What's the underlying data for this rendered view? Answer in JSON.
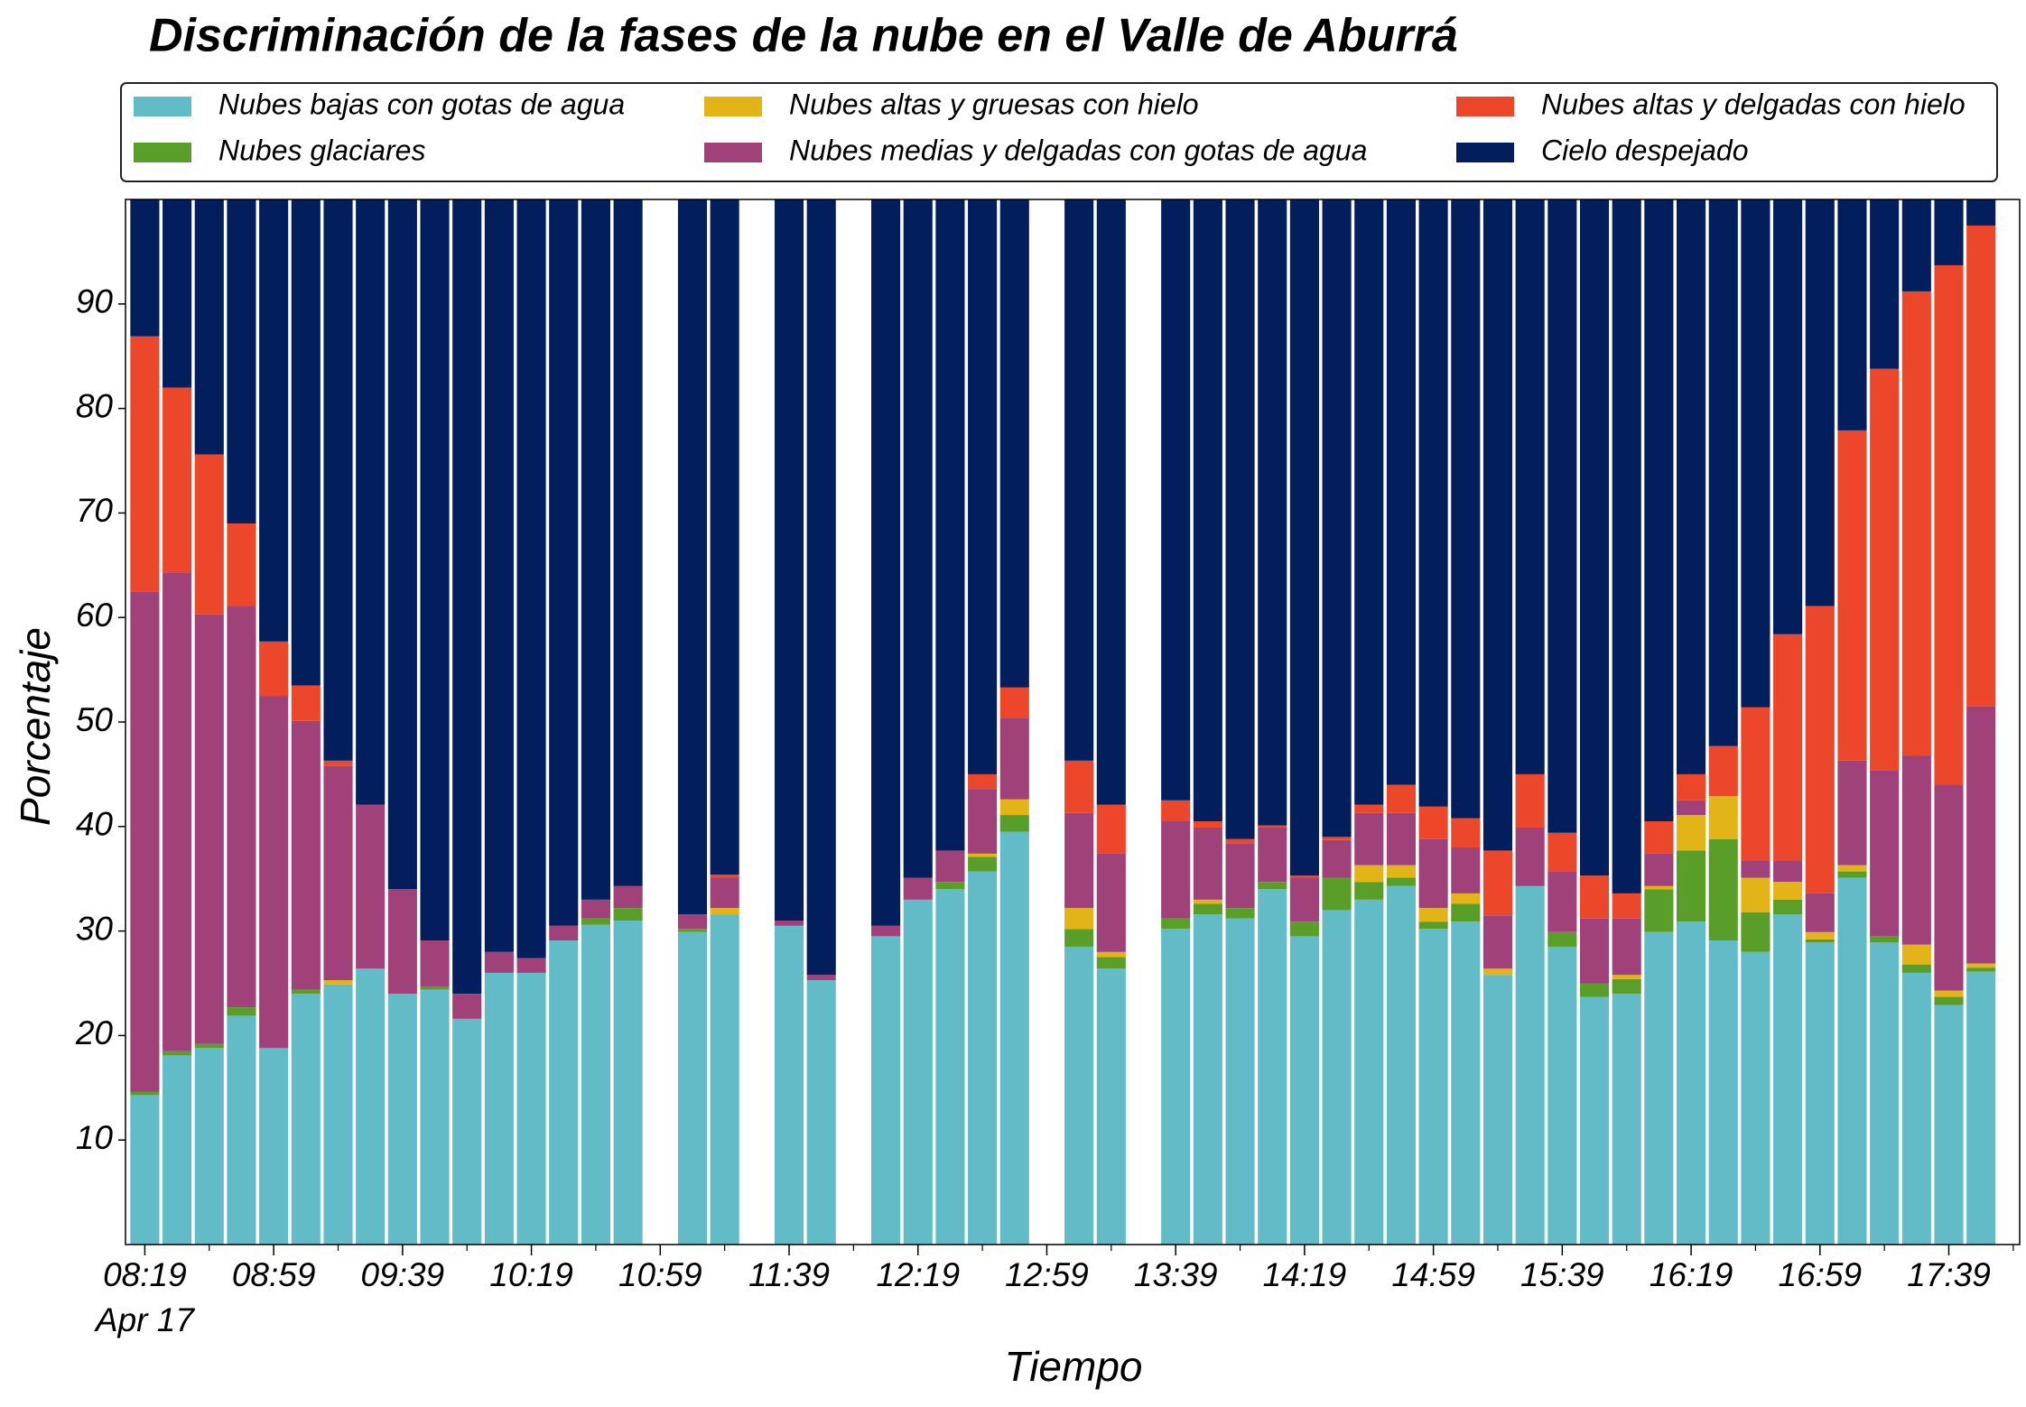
{
  "chart_data": {
    "type": "stacked_bar",
    "title": "Discriminación de la fases de la nube en el Valle de Aburrá",
    "xlabel": "Tiempo",
    "ylabel": "Porcentaje",
    "x": [
      "08:19",
      "08:29",
      "08:39",
      "08:49",
      "08:59",
      "09:09",
      "09:19",
      "09:29",
      "09:39",
      "09:49",
      "09:59",
      "10:09",
      "10:19",
      "10:29",
      "10:39",
      "10:49",
      "10:59",
      "11:09",
      "11:19",
      "11:29",
      "11:39",
      "11:49",
      "11:59",
      "12:09",
      "12:19",
      "12:29",
      "12:39",
      "12:49",
      "12:59",
      "13:09",
      "13:19",
      "13:29",
      "13:39",
      "13:49",
      "13:59",
      "14:09",
      "14:19",
      "14:29",
      "14:39",
      "14:49",
      "14:59",
      "15:09",
      "15:19",
      "15:29",
      "15:39",
      "15:49",
      "15:59",
      "16:09",
      "16:19",
      "16:29",
      "16:39",
      "16:49",
      "16:59",
      "17:09",
      "17:19",
      "17:29",
      "17:39",
      "17:49"
    ],
    "xticks": [
      "08:19",
      "08:59",
      "09:39",
      "10:19",
      "10:59",
      "11:39",
      "12:19",
      "12:59",
      "13:39",
      "14:19",
      "14:59",
      "15:39",
      "16:19",
      "16:59",
      "17:39"
    ],
    "xtick_date": "Apr 17",
    "ylim": [
      0,
      100
    ],
    "yticks": [
      10,
      20,
      30,
      40,
      50,
      60,
      70,
      80,
      90
    ],
    "series": [
      {
        "name": "Nubes bajas con gotas de agua",
        "color": "#62bcc8",
        "values": [
          14.3,
          18.1,
          18.8,
          21.9,
          18.8,
          24.0,
          24.9,
          26.4,
          24,
          24.4,
          21.6,
          26,
          26,
          29.1,
          30.6,
          31,
          null,
          29.9,
          31.6,
          null,
          30.5,
          25.3,
          null,
          29.5,
          33,
          34,
          35.7,
          39.5,
          null,
          28.5,
          26.4,
          null,
          30.2,
          31.6,
          31.2,
          34,
          29.5,
          32,
          33,
          34.3,
          30.2,
          30.9,
          25.8,
          34.3,
          28.5,
          23.7,
          24,
          29.9,
          30.9,
          29.1,
          28,
          31.6,
          28.9,
          35.1,
          28.9,
          26,
          22.9,
          26.1
        ]
      },
      {
        "name": "Nubes glaciares",
        "color": "#5a9e2a",
        "values": [
          0.3,
          0.4,
          0.4,
          0.8,
          0,
          0.4,
          0,
          0,
          0,
          0.3,
          0,
          0,
          0,
          0,
          0.6,
          1.2,
          null,
          0.3,
          0,
          null,
          0,
          0,
          null,
          0,
          0,
          0.7,
          1.4,
          1.6,
          null,
          1.7,
          1.1,
          null,
          1.0,
          1.0,
          1.0,
          0.7,
          1.4,
          3.1,
          1.7,
          0.8,
          0.7,
          1.7,
          0,
          0,
          1.4,
          1.3,
          1.4,
          4.1,
          6.8,
          9.7,
          3.8,
          1.4,
          0.3,
          0.6,
          0.6,
          0.8,
          0.8,
          0.4
        ]
      },
      {
        "name": "Nubes altas y gruesas con hielo",
        "color": "#e2b418",
        "values": [
          0,
          0,
          0,
          0,
          0,
          0,
          0.4,
          0,
          0,
          0,
          0,
          0,
          0,
          0,
          0,
          0,
          null,
          0,
          0.6,
          null,
          0,
          0,
          null,
          0,
          0,
          0,
          0.3,
          1.5,
          null,
          2.0,
          0.5,
          null,
          0,
          0.4,
          0,
          0,
          0,
          0,
          1.6,
          1.2,
          1.3,
          1.0,
          0.6,
          0,
          0,
          0,
          0.4,
          0.3,
          3.4,
          4.1,
          3.3,
          1.7,
          0.7,
          0.6,
          0,
          1.9,
          0.6,
          0.4
        ]
      },
      {
        "name": "Nubes medias y delgadas con gotas de agua",
        "color": "#a0417a",
        "values": [
          47.9,
          45.8,
          41.1,
          38.4,
          33.7,
          25.7,
          20.5,
          15.7,
          10,
          4.4,
          2.4,
          2,
          1.4,
          1.4,
          1.8,
          2.1,
          null,
          1.4,
          2.9,
          null,
          0.5,
          0.5,
          null,
          1,
          2.1,
          3,
          6.2,
          7.8,
          null,
          9.1,
          9.4,
          null,
          9.3,
          6.9,
          6.2,
          5.2,
          4.2,
          3.6,
          5,
          5,
          6.6,
          4.4,
          5.1,
          5.6,
          5.8,
          6.2,
          5.4,
          3.1,
          1.4,
          0,
          1.6,
          2,
          3.7,
          10,
          15.9,
          18.1,
          19.7,
          24.6
        ]
      },
      {
        "name": "Nubes altas y delgadas con hielo",
        "color": "#ec472b",
        "values": [
          24.4,
          17.7,
          15.3,
          7.9,
          5.2,
          3.4,
          0.5,
          0,
          0,
          0,
          0,
          0,
          0,
          0,
          0,
          0,
          null,
          0,
          0.3,
          null,
          0,
          0,
          null,
          0,
          0,
          0,
          1.4,
          2.9,
          null,
          5.0,
          4.7,
          null,
          2.0,
          0.6,
          0.4,
          0.2,
          0.2,
          0.3,
          0.8,
          2.7,
          3.1,
          2.8,
          6.2,
          5.1,
          3.7,
          4.1,
          2.4,
          3.1,
          2.5,
          4.8,
          14.7,
          21.7,
          27.5,
          31.6,
          38.4,
          44.4,
          49.7,
          46
        ]
      },
      {
        "name": "Cielo despejado",
        "color": "#031e5c",
        "values": [
          13.1,
          18.0,
          24.4,
          31.0,
          42.3,
          46.5,
          53.7,
          57.9,
          66,
          70.9,
          76,
          72,
          72.6,
          69.5,
          67,
          65.7,
          null,
          68.4,
          64.6,
          null,
          69,
          74.2,
          null,
          69.5,
          64.9,
          62.3,
          55,
          46.7,
          null,
          53.7,
          57.9,
          null,
          57.5,
          59.5,
          61.2,
          59.9,
          64.7,
          61,
          57.9,
          56,
          58.1,
          59.2,
          62.3,
          55,
          60.6,
          64.7,
          66.4,
          59.5,
          55,
          52.3,
          48.6,
          41.6,
          38.9,
          22.1,
          16.2,
          8.8,
          6.3,
          2.5
        ]
      }
    ]
  }
}
